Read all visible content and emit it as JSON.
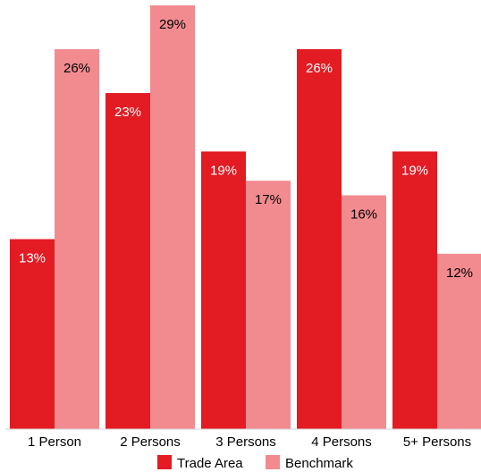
{
  "chart_data": {
    "type": "bar",
    "categories": [
      "1 Person",
      "2 Persons",
      "3 Persons",
      "4 Persons",
      "5+ Persons"
    ],
    "series": [
      {
        "name": "Trade Area",
        "values": [
          13,
          23,
          19,
          26,
          19
        ],
        "color": "#e31b23",
        "label_color": "#ffffff"
      },
      {
        "name": "Benchmark",
        "values": [
          26,
          29,
          17,
          16,
          12
        ],
        "color": "#f28b90",
        "label_color": "#000000"
      }
    ],
    "value_suffix": "%",
    "ylim": [
      0,
      29
    ],
    "grid": false,
    "legend": "bottom",
    "title": "",
    "xlabel": "",
    "ylabel": ""
  }
}
